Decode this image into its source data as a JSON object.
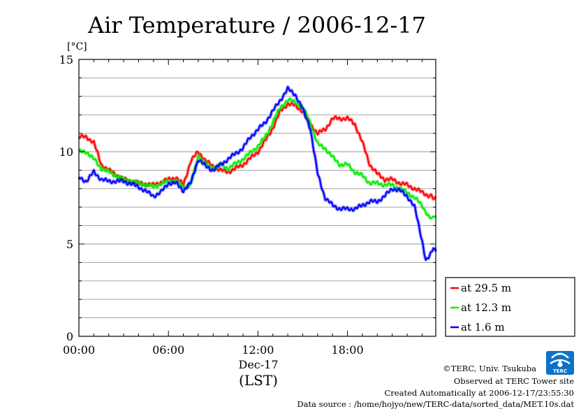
{
  "chart_data": {
    "type": "line",
    "title": "Air Temperature / 2006-12-17",
    "ylabel": "[°C]",
    "xlabel": "(LST)",
    "x_date_label": "Dec-17",
    "xlim": [
      "00:00",
      "23:55"
    ],
    "ylim": [
      0,
      15
    ],
    "y_ticks": [
      "0",
      "5",
      "10",
      "15"
    ],
    "x_ticks": [
      "00:00",
      "06:00",
      "12:00",
      "18:00"
    ],
    "grid": true,
    "legend_position": "right",
    "series": [
      {
        "name": "at 29.5 m",
        "color": "#ff0000",
        "x": [
          "00:00",
          "00:30",
          "01:00",
          "01:30",
          "02:00",
          "03:00",
          "04:00",
          "05:00",
          "06:00",
          "06:30",
          "07:00",
          "07:30",
          "08:00",
          "08:30",
          "09:00",
          "09:30",
          "10:00",
          "11:00",
          "12:00",
          "12:30",
          "13:00",
          "13:30",
          "14:00",
          "14:30",
          "15:00",
          "15:30",
          "16:00",
          "16:30",
          "17:00",
          "17:30",
          "18:00",
          "18:30",
          "19:00",
          "19:30",
          "20:00",
          "20:30",
          "21:00",
          "21:30",
          "22:00",
          "22:30",
          "23:00",
          "23:30",
          "23:55"
        ],
        "y": [
          10.8,
          10.8,
          10.5,
          9.3,
          9.0,
          8.5,
          8.3,
          8.2,
          8.5,
          8.6,
          8.2,
          9.5,
          10.0,
          9.5,
          9.2,
          9.0,
          8.9,
          9.3,
          10.0,
          10.6,
          11.3,
          12.2,
          12.6,
          12.5,
          12.2,
          11.5,
          11.0,
          11.2,
          11.8,
          11.8,
          11.8,
          11.5,
          10.5,
          9.3,
          8.8,
          8.5,
          8.5,
          8.3,
          8.2,
          8.0,
          7.8,
          7.6,
          7.5
        ]
      },
      {
        "name": "at 12.3 m",
        "color": "#00ee00",
        "x": [
          "00:00",
          "00:30",
          "01:00",
          "01:30",
          "02:00",
          "03:00",
          "04:00",
          "05:00",
          "06:00",
          "06:30",
          "07:00",
          "07:30",
          "08:00",
          "08:30",
          "09:00",
          "09:30",
          "10:00",
          "11:00",
          "12:00",
          "12:30",
          "13:00",
          "13:30",
          "14:00",
          "14:30",
          "15:00",
          "15:30",
          "16:00",
          "16:30",
          "17:00",
          "17:30",
          "18:00",
          "18:30",
          "19:00",
          "19:30",
          "20:00",
          "20:30",
          "21:00",
          "21:30",
          "22:00",
          "22:30",
          "23:00",
          "23:30",
          "23:55"
        ],
        "y": [
          10.0,
          10.0,
          9.6,
          9.1,
          8.9,
          8.5,
          8.3,
          8.1,
          8.4,
          8.4,
          8.1,
          8.2,
          9.8,
          9.3,
          9.1,
          9.3,
          9.1,
          9.6,
          10.3,
          10.8,
          11.6,
          12.4,
          12.8,
          12.7,
          12.4,
          11.6,
          10.4,
          10.2,
          9.7,
          9.3,
          9.3,
          8.9,
          8.7,
          8.3,
          8.3,
          8.2,
          8.2,
          8.0,
          7.8,
          7.5,
          7.1,
          6.4,
          6.5
        ]
      },
      {
        "name": "at 1.6 m",
        "color": "#0000ff",
        "x": [
          "00:00",
          "00:30",
          "01:00",
          "01:30",
          "02:00",
          "03:00",
          "04:00",
          "05:00",
          "05:30",
          "06:00",
          "06:30",
          "07:00",
          "07:30",
          "08:00",
          "08:30",
          "09:00",
          "09:30",
          "10:00",
          "10:30",
          "11:00",
          "11:30",
          "12:00",
          "12:30",
          "13:00",
          "13:30",
          "14:00",
          "14:30",
          "15:00",
          "15:30",
          "16:00",
          "16:30",
          "17:00",
          "17:30",
          "18:00",
          "18:30",
          "19:00",
          "19:30",
          "20:00",
          "20:30",
          "21:00",
          "21:30",
          "22:00",
          "22:30",
          "23:00",
          "23:15",
          "23:30",
          "23:45",
          "23:55"
        ],
        "y": [
          8.6,
          8.4,
          8.9,
          8.5,
          8.4,
          8.4,
          8.1,
          7.6,
          7.8,
          8.3,
          8.3,
          7.9,
          8.3,
          9.6,
          9.2,
          9.0,
          9.3,
          9.6,
          9.9,
          10.2,
          10.8,
          11.2,
          11.6,
          12.2,
          12.8,
          13.4,
          13.1,
          12.3,
          11.3,
          8.8,
          7.5,
          7.1,
          6.9,
          6.9,
          6.9,
          7.1,
          7.3,
          7.3,
          7.6,
          8.0,
          7.9,
          7.6,
          7.0,
          5.2,
          4.1,
          4.3,
          4.8,
          4.6
        ]
      }
    ]
  },
  "footer": {
    "copyright": "©TERC, Univ. Tsukuba",
    "site": "Observed at TERC Tower site",
    "created": "Created Automatically at 2006-12-17/23:55:30",
    "source": "Data source : /home/hojyo/new/TERC-data/sorted_data/MET.10s.dat",
    "logo_text": "TERC"
  }
}
